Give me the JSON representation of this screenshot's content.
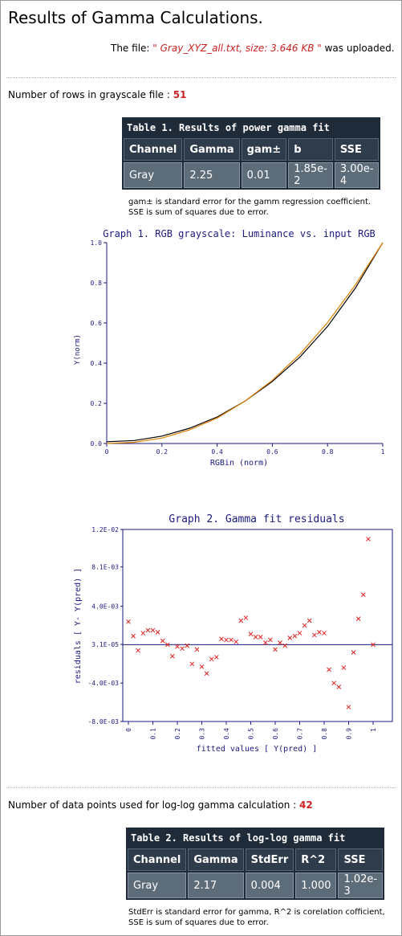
{
  "title": "Results of Gamma Calculations.",
  "upload": {
    "prefix": "The file:",
    "filename": "\" Gray_XYZ_all.txt, size: 3.646 KB \"",
    "suffix": "was uploaded."
  },
  "rows_info": {
    "label": "Number of rows in grayscale file :",
    "value": "51"
  },
  "table1": {
    "caption": "Table 1. Results of power gamma fit",
    "headers": [
      "Channel",
      "Gamma",
      "gam±",
      "b",
      "SSE"
    ],
    "row": [
      "Gray",
      "2.25",
      "0.01",
      "1.85e-2",
      "3.00e-4"
    ],
    "note_line1": "gam± is standard error for the gamm regression coefficient.",
    "note_line2": "SSE is sum of squares due to error."
  },
  "loglog_info": {
    "label": "Number of data points used for log-log gamma calculation :",
    "value": "42"
  },
  "table2": {
    "caption": "Table 2. Results of log-log gamma fit",
    "headers": [
      "Channel",
      "Gamma",
      "StdErr",
      "R^2",
      "SSE"
    ],
    "row": [
      "Gray",
      "2.17",
      "0.004",
      "1.000",
      "1.02e-3"
    ],
    "note_line1": "StdErr is standard error for gamma, R^2 is corelation cofficient,",
    "note_line2": "SSE is sum of squares due to error."
  },
  "chart_data": [
    {
      "type": "line",
      "title": "Graph 1. RGB grayscale: Luminance vs. input RGB",
      "xlabel": "RGBin (norm)",
      "ylabel": "Y(norm)",
      "xlim": [
        0,
        1
      ],
      "ylim": [
        0,
        1
      ],
      "xticks": [
        "0",
        "0.2",
        "0.4",
        "0.6",
        "0.8",
        "1"
      ],
      "yticks": [
        "0.0",
        "0.2",
        "0.4",
        "0.6",
        "0.8",
        "1.0"
      ],
      "series": [
        {
          "color": "#000000",
          "x": [
            0,
            0.1,
            0.2,
            0.3,
            0.4,
            0.5,
            0.6,
            0.7,
            0.8,
            0.9,
            1.0
          ],
          "y": [
            0.009,
            0.015,
            0.037,
            0.076,
            0.132,
            0.21,
            0.309,
            0.431,
            0.583,
            0.772,
            1.0
          ]
        },
        {
          "color": "#e08000",
          "x": [
            0,
            0.1,
            0.2,
            0.3,
            0.4,
            0.5,
            0.6,
            0.7,
            0.8,
            0.9,
            1.0
          ],
          "y": [
            0.0,
            0.006,
            0.027,
            0.068,
            0.127,
            0.21,
            0.315,
            0.445,
            0.602,
            0.788,
            1.0
          ]
        }
      ]
    },
    {
      "type": "scatter",
      "title": "Graph 2. Gamma fit residuals",
      "xlabel": "fitted values [ Y(pred) ]",
      "ylabel": "residuals [ Y- Y(pred) ]",
      "xlim": [
        0,
        1
      ],
      "ylim": [
        -0.008,
        0.012
      ],
      "xticks": [
        "0",
        "0.1",
        "0.2",
        "0.3",
        "0.4",
        "0.5",
        "0.6",
        "0.7",
        "0.8",
        "0.9",
        "1"
      ],
      "yticks": [
        "1.2E-02",
        "8.1E-03",
        "4.0E-03",
        "3.1E-05",
        "-4.0E-03",
        "-8.0E-03"
      ],
      "reference_line_y": 0.0,
      "marker_color": "#dd2222",
      "line_color": "#1a1a80",
      "points": [
        [
          0.0,
          0.0024
        ],
        [
          0.02,
          0.0009
        ],
        [
          0.04,
          -0.0006
        ],
        [
          0.06,
          0.0012
        ],
        [
          0.08,
          0.0015
        ],
        [
          0.1,
          0.0015
        ],
        [
          0.12,
          0.0013
        ],
        [
          0.14,
          0.0004
        ],
        [
          0.16,
          0.0
        ],
        [
          0.18,
          -0.0012
        ],
        [
          0.2,
          -0.0002
        ],
        [
          0.22,
          -0.0004
        ],
        [
          0.24,
          -0.0001
        ],
        [
          0.26,
          -0.002
        ],
        [
          0.28,
          -0.0005
        ],
        [
          0.3,
          -0.0023
        ],
        [
          0.32,
          -0.003
        ],
        [
          0.34,
          -0.0015
        ],
        [
          0.36,
          -0.0013
        ],
        [
          0.38,
          0.0006
        ],
        [
          0.4,
          0.0005
        ],
        [
          0.42,
          0.0005
        ],
        [
          0.44,
          0.0003
        ],
        [
          0.46,
          0.0025
        ],
        [
          0.48,
          0.0028
        ],
        [
          0.5,
          0.0011
        ],
        [
          0.52,
          0.0008
        ],
        [
          0.54,
          0.0008
        ],
        [
          0.56,
          0.0002
        ],
        [
          0.58,
          0.0005
        ],
        [
          0.6,
          -0.0005
        ],
        [
          0.62,
          0.0002
        ],
        [
          0.64,
          -0.0001
        ],
        [
          0.66,
          0.0007
        ],
        [
          0.68,
          0.0009
        ],
        [
          0.7,
          0.0012
        ],
        [
          0.72,
          0.002
        ],
        [
          0.74,
          0.0025
        ],
        [
          0.76,
          0.001
        ],
        [
          0.78,
          0.0013
        ],
        [
          0.8,
          0.0012
        ],
        [
          0.82,
          -0.0026
        ],
        [
          0.84,
          -0.004
        ],
        [
          0.86,
          -0.0044
        ],
        [
          0.88,
          -0.0024
        ],
        [
          0.9,
          -0.0065
        ],
        [
          0.92,
          -0.0008
        ],
        [
          0.94,
          0.0027
        ],
        [
          0.96,
          0.0052
        ],
        [
          0.98,
          0.011
        ],
        [
          1.0,
          0.0
        ]
      ]
    }
  ]
}
